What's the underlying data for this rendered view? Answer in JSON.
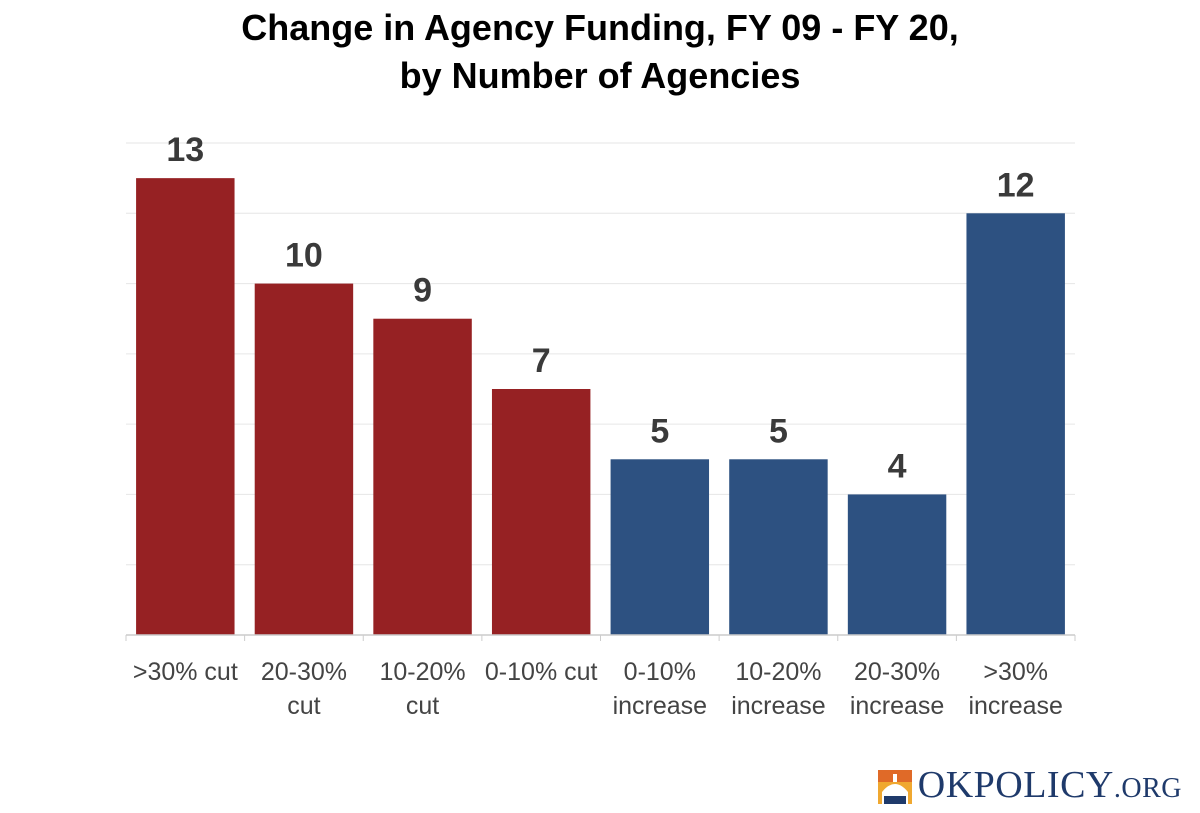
{
  "chart_data": {
    "type": "bar",
    "title_lines": [
      "Change in Agency Funding, FY 09 - FY 20,",
      "by Number of Agencies"
    ],
    "categories": [
      [
        ">30% cut"
      ],
      [
        "20-30%",
        "cut"
      ],
      [
        "10-20%",
        "cut"
      ],
      [
        "0-10% cut"
      ],
      [
        "0-10%",
        "increase"
      ],
      [
        "10-20%",
        "increase"
      ],
      [
        "20-30%",
        "increase"
      ],
      [
        ">30%",
        "increase"
      ]
    ],
    "values": [
      13,
      10,
      9,
      7,
      5,
      5,
      4,
      12
    ],
    "colors": [
      "#962123",
      "#962123",
      "#962123",
      "#962123",
      "#2d5181",
      "#2d5181",
      "#2d5181",
      "#2d5181"
    ],
    "ylim": [
      0,
      14
    ],
    "gridlines": true,
    "xlabel": "",
    "ylabel": ""
  },
  "logo": {
    "text_main": "OKPOLICY",
    "text_suffix": ".ORG"
  }
}
